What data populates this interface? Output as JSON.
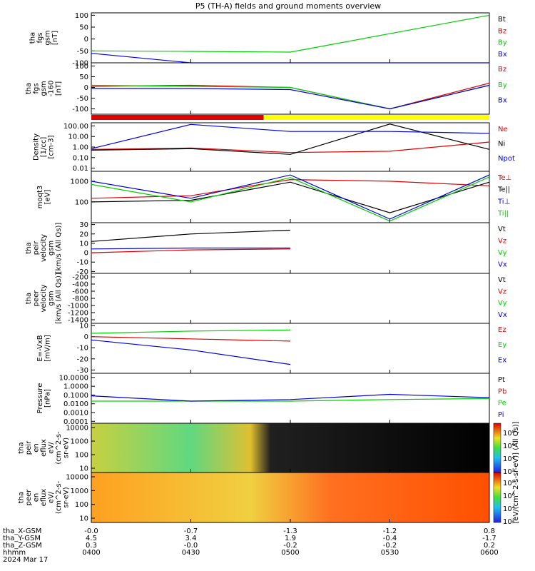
{
  "title": "P5 (TH-A) fields and ground moments overview",
  "colors": {
    "black": "#000000",
    "red": "#e00000",
    "green": "#00d000",
    "blue": "#0000e0",
    "yellow": "#ffff00"
  },
  "mode_bar": {
    "colors": [
      "red",
      "yellow"
    ],
    "split_time": 0.433
  },
  "panels": [
    {
      "id": "fgs",
      "label": [
        "tha",
        "fgs",
        "gsm",
        "[nT]"
      ],
      "yticks": [
        "100",
        "50",
        "0",
        "-50",
        "-100"
      ],
      "ytick_values": [
        100,
        50,
        0,
        -50,
        -100
      ],
      "ylim": [
        -100,
        110
      ],
      "legend": [
        {
          "text": "Bt",
          "color": "black"
        },
        {
          "text": "Bz",
          "color": "red"
        },
        {
          "text": "By",
          "color": "green"
        },
        {
          "text": "Bx",
          "color": "blue"
        }
      ]
    },
    {
      "id": "fgs_hi",
      "label": [
        "tha",
        "fgs",
        "gsm",
        "-160",
        "[nT]"
      ],
      "yticks": [
        "100",
        "50",
        "0",
        "-50",
        "-100"
      ],
      "ytick_values": [
        100,
        50,
        0,
        -50,
        -100
      ],
      "ylim": [
        -125,
        115
      ],
      "legend": [
        {
          "text": "Bz",
          "color": "red"
        },
        {
          "text": "By",
          "color": "green"
        },
        {
          "text": "Bx",
          "color": "blue"
        }
      ]
    },
    {
      "id": "density",
      "label": [
        "Density",
        "[1/cc]",
        "[cm-3]"
      ],
      "yticks": [
        "100.00",
        "10.00",
        "1.00",
        "0.10",
        "0.01"
      ],
      "ylim": [
        0.005,
        200
      ],
      "log": true,
      "legend": [
        {
          "text": "Ne",
          "color": "red"
        },
        {
          "text": "Ni",
          "color": "black"
        },
        {
          "text": "Npot",
          "color": "blue"
        }
      ]
    },
    {
      "id": "temp",
      "label": [
        "moqt3",
        "[eV]"
      ],
      "yticks": [
        "1000",
        "100"
      ],
      "ylim": [
        10,
        3000
      ],
      "log": true,
      "legend": [
        {
          "text": "Te⊥",
          "color": "red"
        },
        {
          "text": "Te||",
          "color": "black"
        },
        {
          "text": "Ti⊥",
          "color": "blue"
        },
        {
          "text": "Ti||",
          "color": "green"
        }
      ]
    },
    {
      "id": "peir_v",
      "label": [
        "tha",
        "peir",
        "velocity",
        "gsm",
        "[km/s (All Qs)]"
      ],
      "yticks": [
        "30",
        "20",
        "10",
        "0",
        "-10",
        "-20"
      ],
      "ytick_values": [
        30,
        20,
        10,
        0,
        -10,
        -20
      ],
      "ylim": [
        -22,
        32
      ],
      "legend": [
        {
          "text": "Vt",
          "color": "black"
        },
        {
          "text": "Vz",
          "color": "red"
        },
        {
          "text": "Vy",
          "color": "green"
        },
        {
          "text": "Vx",
          "color": "blue"
        }
      ]
    },
    {
      "id": "peer_v",
      "label": [
        "tha",
        "peer",
        "velocity",
        "gsm",
        "[km/s (All Qs)]"
      ],
      "yticks": [
        "-200",
        "-400",
        "-600",
        "-800",
        "-1000",
        "-1200",
        "-1400"
      ],
      "ytick_values": [
        -200,
        -400,
        -600,
        -800,
        -1000,
        -1200,
        -1400
      ],
      "ylim": [
        -1500,
        -100
      ],
      "legend": [
        {
          "text": "Vt",
          "color": "black"
        },
        {
          "text": "Vz",
          "color": "red"
        },
        {
          "text": "Vy",
          "color": "green"
        },
        {
          "text": "Vx",
          "color": "blue"
        }
      ]
    },
    {
      "id": "efield",
      "label": [
        "E=-VxB",
        "[mV/m]"
      ],
      "yticks": [
        "10",
        "0",
        "-10",
        "-20",
        "-30"
      ],
      "ytick_values": [
        10,
        0,
        -10,
        -20,
        -30
      ],
      "ylim": [
        -33,
        12
      ],
      "legend": [
        {
          "text": "Ez",
          "color": "red"
        },
        {
          "text": "Ey",
          "color": "green"
        },
        {
          "text": "Ex",
          "color": "blue"
        }
      ]
    },
    {
      "id": "pressure",
      "label": [
        "Pressure",
        "[nPa]"
      ],
      "yticks": [
        "10.0000",
        "1.0000",
        "0.1000",
        "0.0100",
        "0.0010",
        "0.0001"
      ],
      "ylim": [
        6e-05,
        30
      ],
      "log": true,
      "legend": [
        {
          "text": "Pt",
          "color": "black"
        },
        {
          "text": "Pb",
          "color": "red"
        },
        {
          "text": "Pe",
          "color": "green"
        },
        {
          "text": "Pi",
          "color": "blue"
        }
      ]
    },
    {
      "id": "peir_spec",
      "label": [
        "tha",
        "peir",
        "en",
        "eflux",
        "eV/",
        "(cm^2-s-",
        "sr-eV)"
      ],
      "yticks": [
        "10000",
        "1000",
        "100",
        "10"
      ]
    },
    {
      "id": "peer_spec",
      "label": [
        "tha",
        "peer",
        "en",
        "eflux",
        "eV/",
        "(cm^2-s-",
        "sr-eV)"
      ],
      "yticks": [
        "10000",
        "1000",
        "100",
        "10"
      ]
    }
  ],
  "colorbar": {
    "ticks": [
      "10⁸",
      "10⁶",
      "10⁴",
      "10²"
    ],
    "upper_ticks": [
      "10⁸",
      "10⁶",
      "10⁴",
      "10²"
    ],
    "label": "[eV/(cm^2-s-sr-eV)] (All Qs)]"
  },
  "x_axis": {
    "rows": [
      {
        "label": "tha_X-GSM",
        "values": [
          "-0.0",
          "-0.7",
          "-1.3",
          "-1.2",
          "0.8"
        ]
      },
      {
        "label": "tha_Y-GSM",
        "values": [
          "4.5",
          "3.4",
          "1.9",
          "-0.4",
          "-1.7"
        ]
      },
      {
        "label": "tha_Z-GSM",
        "values": [
          "0.3",
          "-0.0",
          "-0.2",
          "-0.2",
          "0.2"
        ]
      },
      {
        "label": "hhmm",
        "values": [
          "0400",
          "0430",
          "0500",
          "0530",
          "0600"
        ]
      }
    ],
    "date": "2024 Mar 17"
  },
  "chart_data": {
    "type": "line",
    "x": [
      "04:00",
      "04:30",
      "05:00",
      "05:30",
      "06:00"
    ],
    "xlabel": "hhmm",
    "series_by_panel": {
      "fgs": [
        {
          "name": "By",
          "values": [
            -50,
            -52,
            -55,
            null,
            100
          ]
        },
        {
          "name": "Bx",
          "values": [
            -60,
            -100,
            -100,
            null,
            -100
          ]
        }
      ],
      "fgs_hi": [
        {
          "name": "Bz",
          "values": [
            5,
            10,
            0,
            -100,
            20
          ]
        },
        {
          "name": "By",
          "values": [
            10,
            5,
            0,
            -100,
            10
          ]
        },
        {
          "name": "Bx",
          "values": [
            -5,
            -5,
            -10,
            -100,
            10
          ]
        }
      ],
      "density": [
        {
          "name": "Ne",
          "values": [
            0.6,
            0.8,
            0.3,
            0.4,
            3
          ]
        },
        {
          "name": "Ni",
          "values": [
            0.5,
            0.7,
            0.2,
            150,
            0.6
          ]
        },
        {
          "name": "Npot",
          "values": [
            0.7,
            140,
            30,
            30,
            20
          ]
        }
      ],
      "temp": [
        {
          "name": "Te⊥",
          "values": [
            150,
            200,
            1200,
            1000,
            600
          ]
        },
        {
          "name": "Te||",
          "values": [
            100,
            120,
            900,
            30,
            900
          ]
        },
        {
          "name": "Ti⊥",
          "values": [
            1000,
            150,
            2000,
            15,
            2000
          ]
        },
        {
          "name": "Ti||",
          "values": [
            700,
            100,
            1500,
            12,
            1600
          ]
        }
      ],
      "peir_v": [
        {
          "name": "Vt",
          "values": [
            12,
            20,
            24,
            null,
            null
          ]
        },
        {
          "name": "Vz",
          "values": [
            0,
            3,
            4,
            null,
            null
          ]
        },
        {
          "name": "Vx",
          "values": [
            4,
            5,
            5,
            null,
            null
          ]
        }
      ],
      "efield": [
        {
          "name": "Ez",
          "values": [
            0,
            -2,
            -4,
            null,
            null
          ]
        },
        {
          "name": "Ey",
          "values": [
            3,
            5,
            6,
            null,
            null
          ]
        },
        {
          "name": "Ex",
          "values": [
            -3,
            -12,
            -25,
            null,
            null
          ]
        }
      ],
      "pressure": [
        {
          "name": "Pe",
          "values": [
            0.02,
            0.02,
            0.02,
            0.03,
            0.04
          ]
        },
        {
          "name": "Pi",
          "values": [
            0.08,
            0.02,
            0.03,
            0.12,
            0.05
          ]
        }
      ]
    }
  }
}
